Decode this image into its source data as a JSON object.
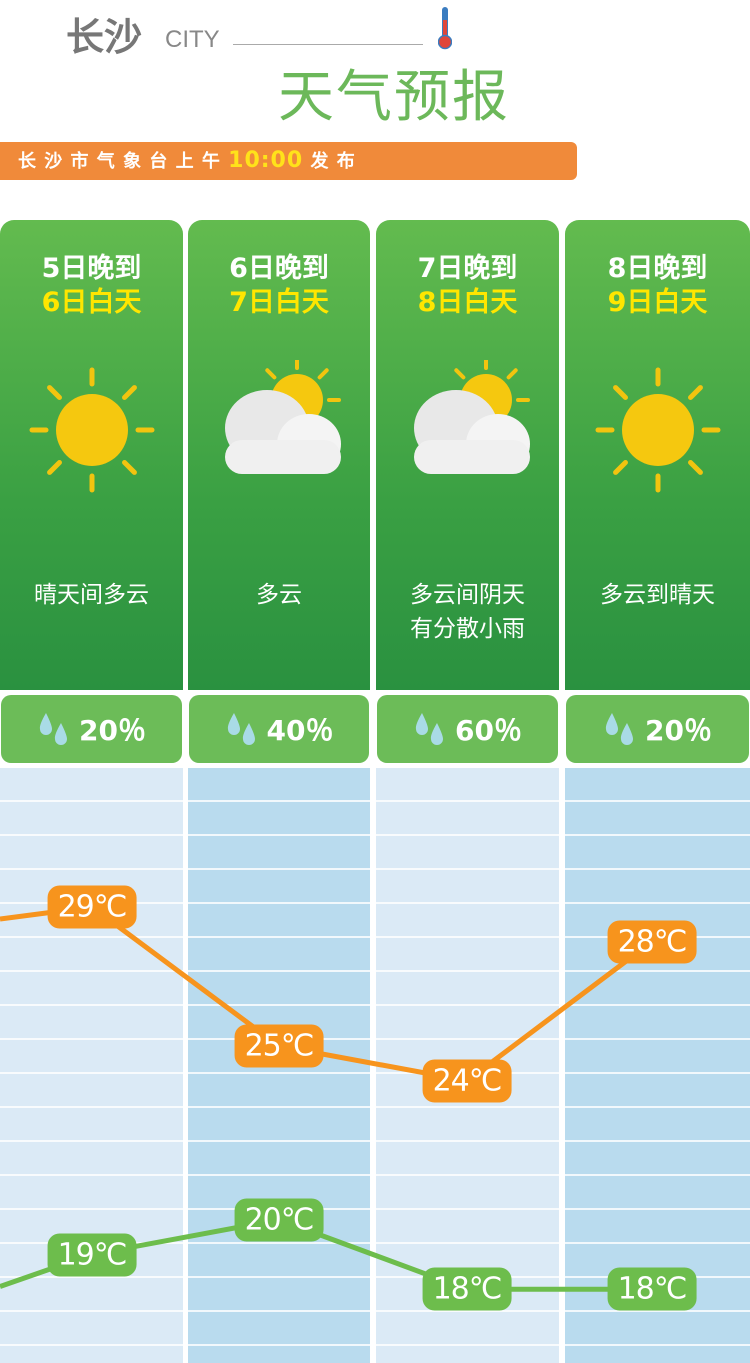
{
  "header": {
    "city": "长沙",
    "city_en": "CITY",
    "title": "天气预报",
    "icon": "thermometer-icon"
  },
  "banner": {
    "prefix": "长 沙 市 气 象 台 上 午 ",
    "time": "10:00",
    "suffix": " 发 布"
  },
  "days": [
    {
      "line1": "5日晚到",
      "line2": "6日白天",
      "icon": "sun-icon",
      "desc": "晴天间多云",
      "rain": "20％"
    },
    {
      "line1": "6日晚到",
      "line2": "7日白天",
      "icon": "cloud-sun-icon",
      "desc": "多云",
      "rain": "40％"
    },
    {
      "line1": "7日晚到",
      "line2": "8日白天",
      "icon": "cloud-sun-icon",
      "desc": "多云间阴天\n有分散小雨",
      "rain": "60％"
    },
    {
      "line1": "8日晚到",
      "line2": "9日白天",
      "icon": "sun-icon",
      "desc": "多云到晴天",
      "rain": "20％"
    }
  ],
  "chart_data": {
    "type": "line",
    "categories": [
      "5日晚到6日白天",
      "6日晚到7日白天",
      "7日晚到8日白天",
      "8日晚到9日白天"
    ],
    "series": [
      {
        "key": "high",
        "values": [
          29,
          25,
          24,
          28
        ],
        "labels": [
          "29℃",
          "25℃",
          "24℃",
          "28℃"
        ],
        "color": "#f7941d"
      },
      {
        "key": "low",
        "values": [
          19,
          20,
          18,
          18
        ],
        "labels": [
          "19℃",
          "20℃",
          "18℃",
          "18℃"
        ],
        "color": "#6dbd4c"
      }
    ],
    "unit": "℃"
  },
  "colors": {
    "green": "#3aa043",
    "orange": "#f08a3a",
    "yellow": "#ffe600"
  }
}
